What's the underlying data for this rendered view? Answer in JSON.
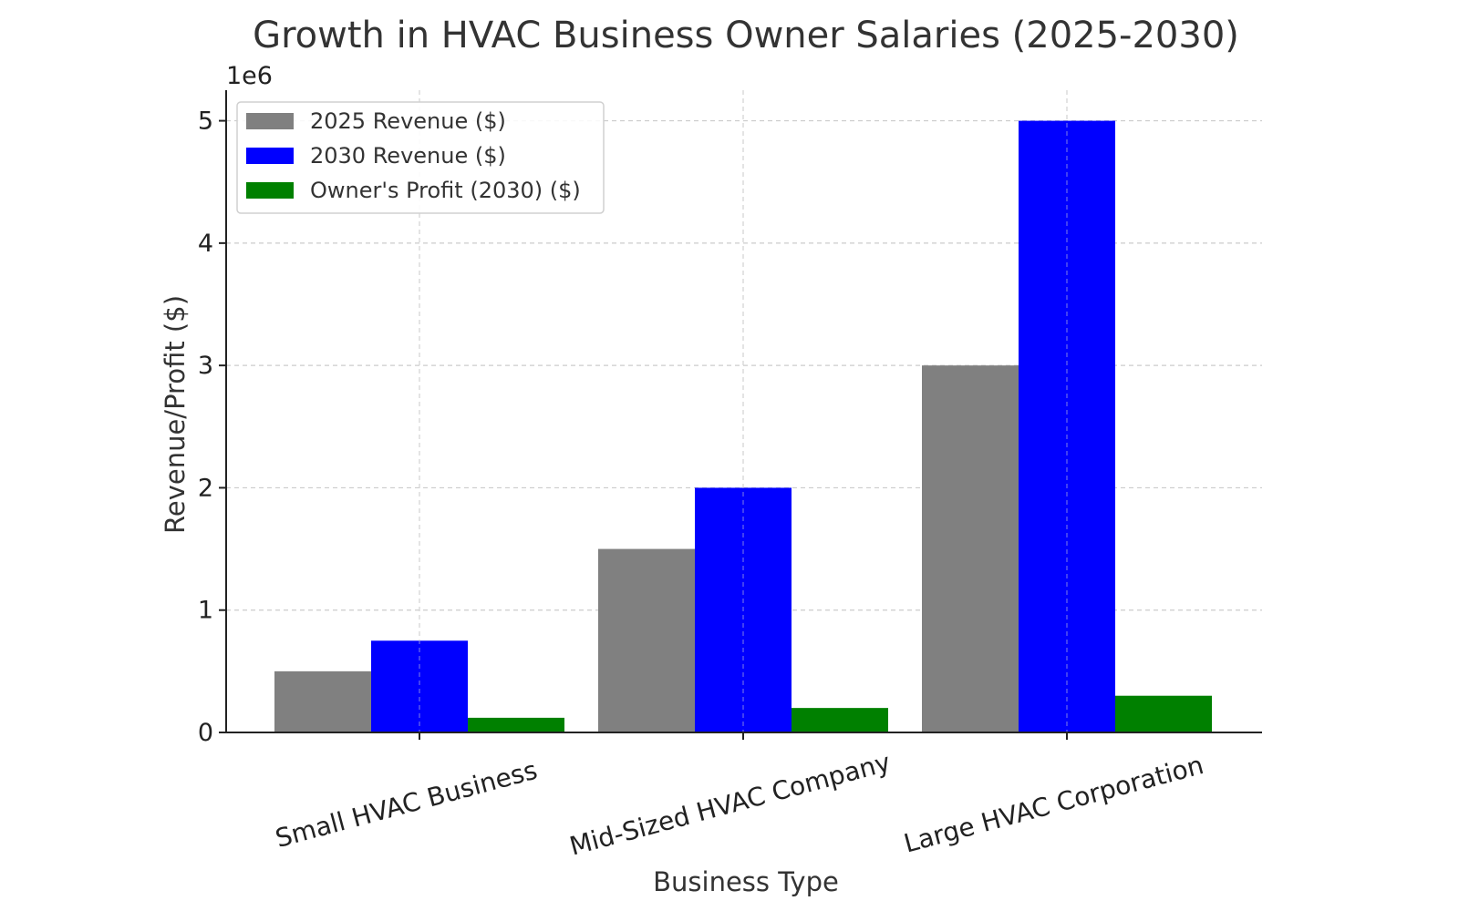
{
  "chart_data": {
    "type": "bar",
    "title": "Growth in HVAC Business Owner Salaries (2025-2030)",
    "xlabel": "Business Type",
    "ylabel": "Revenue/Profit ($)",
    "y_offset_label": "1e6",
    "categories": [
      "Small HVAC Business",
      "Mid-Sized HVAC Company",
      "Large HVAC Corporation"
    ],
    "series": [
      {
        "name": "2025 Revenue ($)",
        "color": "#808080",
        "values": [
          500000,
          1500000,
          3000000
        ]
      },
      {
        "name": "2030 Revenue ($)",
        "color": "#0000ff",
        "values": [
          750000,
          2000000,
          5000000
        ]
      },
      {
        "name": "Owner's Profit (2030) ($)",
        "color": "#008000",
        "values": [
          120000,
          200000,
          300000
        ]
      }
    ],
    "ylim": [
      0,
      5250000
    ],
    "yticks": [
      0,
      1000000,
      2000000,
      3000000,
      4000000,
      5000000
    ],
    "ytick_labels": [
      "0",
      "1",
      "2",
      "3",
      "4",
      "5"
    ],
    "grid": true,
    "legend_position": "top-left",
    "xtick_rotation_deg": -15
  }
}
